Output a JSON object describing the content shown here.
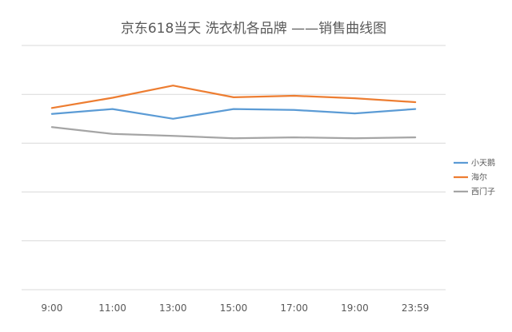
{
  "chart_data": {
    "type": "line",
    "title": "京东618当天 洗衣机各品牌 ——销售曲线图",
    "xlabel": "",
    "ylabel": "",
    "categories": [
      "9:00",
      "11:00",
      "13:00",
      "15:00",
      "17:00",
      "19:00",
      "23:59"
    ],
    "y_axis_labels_shown": false,
    "ylim": [
      0,
      5
    ],
    "grid": true,
    "legend_position": "right",
    "series": [
      {
        "name": "小天鹅",
        "color": "#5b9bd5",
        "values": [
          3.6,
          3.7,
          3.5,
          3.7,
          3.68,
          3.61,
          3.7
        ]
      },
      {
        "name": "海尔",
        "color": "#ed7d31",
        "values": [
          3.72,
          3.93,
          4.18,
          3.94,
          3.97,
          3.92,
          3.84
        ]
      },
      {
        "name": "西门子",
        "color": "#a5a5a5",
        "values": [
          3.33,
          3.19,
          3.15,
          3.1,
          3.12,
          3.1,
          3.12
        ]
      }
    ]
  }
}
